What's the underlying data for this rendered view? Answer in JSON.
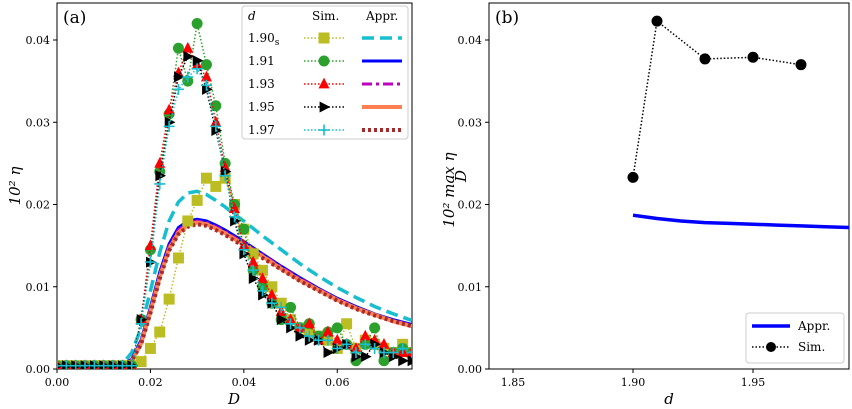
{
  "chart_data": [
    {
      "type": "line",
      "panel_label": "(a)",
      "xlabel": "D",
      "ylabel": "10² η",
      "xlim": [
        0.0,
        0.076
      ],
      "ylim": [
        0.0,
        0.0445
      ],
      "xticks": [
        0.0,
        0.02,
        0.04,
        0.06
      ],
      "xtick_labels": [
        "0.00",
        "0.02",
        "0.04",
        "0.06"
      ],
      "yticks": [
        0.0,
        0.01,
        0.02,
        0.03,
        0.04
      ],
      "ytick_labels": [
        "0.00",
        "0.01",
        "0.02",
        "0.03",
        "0.04"
      ],
      "legend": {
        "header_d": "d",
        "header_sim": "Sim.",
        "header_appr": "Appr.",
        "entries": [
          {
            "d": "1.90",
            "d_sub": "s"
          },
          {
            "d": "1.91",
            "d_sub": ""
          },
          {
            "d": "1.93",
            "d_sub": ""
          },
          {
            "d": "1.95",
            "d_sub": ""
          },
          {
            "d": "1.97",
            "d_sub": ""
          }
        ]
      },
      "sim_x": [
        0.0,
        0.002,
        0.004,
        0.006,
        0.008,
        0.01,
        0.012,
        0.014,
        0.016,
        0.018,
        0.02,
        0.022,
        0.024,
        0.026,
        0.028,
        0.03,
        0.032,
        0.034,
        0.036,
        0.038,
        0.04,
        0.042,
        0.044,
        0.046,
        0.048,
        0.05,
        0.052,
        0.054,
        0.056,
        0.058,
        0.06,
        0.062,
        0.064,
        0.066,
        0.068,
        0.07,
        0.072,
        0.074,
        0.076
      ],
      "series": [
        {
          "name": "1.90s Sim.",
          "kind": "sim",
          "color": "#bcbd22",
          "marker": "square",
          "values": [
            0.0004,
            0.0004,
            0.0004,
            0.0004,
            0.0004,
            0.0004,
            0.0004,
            0.0004,
            0.0004,
            0.0009,
            0.0025,
            0.0045,
            0.0085,
            0.0135,
            0.018,
            0.0205,
            0.0232,
            0.0222,
            0.0232,
            0.02,
            0.017,
            0.014,
            0.012,
            0.01,
            0.008,
            0.006,
            0.005,
            0.0045,
            0.004,
            0.0035,
            0.0025,
            0.0055,
            0.0025,
            0.0035,
            0.003,
            0.0025,
            0.002,
            0.003,
            0.002
          ]
        },
        {
          "name": "1.91 Sim.",
          "kind": "sim",
          "color": "#2ca02c",
          "marker": "circle",
          "values": [
            0.0004,
            0.0004,
            0.0004,
            0.0004,
            0.0004,
            0.0004,
            0.0004,
            0.0004,
            0.0004,
            0.006,
            0.0145,
            0.024,
            0.031,
            0.039,
            0.035,
            0.042,
            0.037,
            0.032,
            0.025,
            0.02,
            0.017,
            0.012,
            0.01,
            0.008,
            0.006,
            0.0075,
            0.005,
            0.0055,
            0.004,
            0.0045,
            0.005,
            0.003,
            0.001,
            0.003,
            0.005,
            0.001,
            0.002,
            0.0025,
            0.002
          ]
        },
        {
          "name": "1.93 Sim.",
          "kind": "sim",
          "color": "#ff0000",
          "marker": "triangle-up",
          "values": [
            0.0004,
            0.0004,
            0.0004,
            0.0004,
            0.0004,
            0.0004,
            0.0004,
            0.0004,
            0.0004,
            0.006,
            0.015,
            0.025,
            0.0315,
            0.036,
            0.039,
            0.037,
            0.0355,
            0.03,
            0.0245,
            0.0195,
            0.015,
            0.013,
            0.011,
            0.009,
            0.007,
            0.006,
            0.005,
            0.0055,
            0.0035,
            0.0045,
            0.0035,
            0.003,
            0.0025,
            0.004,
            0.0035,
            0.003,
            0.002,
            0.002,
            0.002
          ]
        },
        {
          "name": "1.95 Sim.",
          "kind": "sim",
          "color": "#000000",
          "marker": "triangle-right",
          "values": [
            0.0004,
            0.0004,
            0.0004,
            0.0004,
            0.0004,
            0.0004,
            0.0004,
            0.0004,
            0.0004,
            0.006,
            0.013,
            0.0235,
            0.03,
            0.0355,
            0.038,
            0.0375,
            0.034,
            0.029,
            0.024,
            0.018,
            0.014,
            0.011,
            0.009,
            0.008,
            0.006,
            0.005,
            0.004,
            0.0035,
            0.0035,
            0.002,
            0.0025,
            0.003,
            0.0015,
            0.0015,
            0.003,
            0.002,
            0.0015,
            0.001,
            0.001
          ]
        },
        {
          "name": "1.97 Sim.",
          "kind": "sim",
          "color": "#17becf",
          "marker": "plus",
          "values": [
            0.0004,
            0.0004,
            0.0004,
            0.0004,
            0.0004,
            0.0004,
            0.0004,
            0.0004,
            0.0004,
            0.0055,
            0.013,
            0.0225,
            0.0295,
            0.034,
            0.0355,
            0.0365,
            0.0345,
            0.0295,
            0.0235,
            0.0185,
            0.0145,
            0.012,
            0.0095,
            0.008,
            0.0075,
            0.0055,
            0.005,
            0.004,
            0.0035,
            0.0035,
            0.0025,
            0.003,
            0.002,
            0.003,
            0.0025,
            0.002,
            0.002,
            0.0025,
            0.002
          ]
        }
      ],
      "appr_x": [
        0.0,
        0.01,
        0.014,
        0.016,
        0.018,
        0.02,
        0.022,
        0.024,
        0.026,
        0.028,
        0.03,
        0.032,
        0.034,
        0.036,
        0.038,
        0.04,
        0.044,
        0.048,
        0.052,
        0.056,
        0.06,
        0.064,
        0.068,
        0.072,
        0.076
      ],
      "appr_series": [
        {
          "name": "1.90s Appr.",
          "kind": "appr",
          "color": "#17becf",
          "style": "dashed",
          "width": 3.5,
          "values": [
            0.0004,
            0.0004,
            0.0006,
            0.002,
            0.005,
            0.0095,
            0.0142,
            0.018,
            0.0203,
            0.0214,
            0.0216,
            0.0212,
            0.0205,
            0.0197,
            0.0188,
            0.018,
            0.0162,
            0.0145,
            0.0128,
            0.0113,
            0.0099,
            0.0087,
            0.0076,
            0.0067,
            0.0059
          ]
        },
        {
          "name": "1.91 Appr.",
          "kind": "appr",
          "color": "#0000ff",
          "style": "solid",
          "width": 3,
          "values": [
            0.0004,
            0.0004,
            0.0005,
            0.0012,
            0.0035,
            0.0075,
            0.0118,
            0.0152,
            0.0172,
            0.018,
            0.0182,
            0.018,
            0.0175,
            0.0169,
            0.0162,
            0.0155,
            0.014,
            0.0125,
            0.0111,
            0.0098,
            0.0086,
            0.0076,
            0.0067,
            0.006,
            0.0054
          ]
        },
        {
          "name": "1.93 Appr.",
          "kind": "appr",
          "color": "#bf00bf",
          "style": "dashdot",
          "width": 3,
          "values": [
            0.0004,
            0.0004,
            0.0005,
            0.0011,
            0.0033,
            0.0072,
            0.0115,
            0.0149,
            0.0169,
            0.0177,
            0.018,
            0.0178,
            0.0173,
            0.0167,
            0.016,
            0.0153,
            0.0139,
            0.0124,
            0.011,
            0.0097,
            0.0085,
            0.0075,
            0.0066,
            0.0059,
            0.0053
          ]
        },
        {
          "name": "1.95 Appr.",
          "kind": "appr",
          "color": "#ff7f50",
          "style": "solid",
          "width": 4,
          "values": [
            0.0004,
            0.0004,
            0.0005,
            0.001,
            0.0031,
            0.007,
            0.0112,
            0.0146,
            0.0166,
            0.0175,
            0.0178,
            0.0176,
            0.0171,
            0.0165,
            0.0158,
            0.0151,
            0.0137,
            0.0122,
            0.0108,
            0.0096,
            0.0084,
            0.0074,
            0.0066,
            0.0058,
            0.0052
          ]
        },
        {
          "name": "1.97 Appr.",
          "kind": "appr",
          "color": "#a52a2a",
          "style": "dotted",
          "width": 4,
          "values": [
            0.0004,
            0.0004,
            0.0005,
            0.001,
            0.003,
            0.0068,
            0.011,
            0.0144,
            0.0164,
            0.0173,
            0.0176,
            0.0174,
            0.0169,
            0.0163,
            0.0156,
            0.0149,
            0.0135,
            0.0121,
            0.0107,
            0.0095,
            0.0083,
            0.0073,
            0.0065,
            0.0058,
            0.0052
          ]
        }
      ]
    },
    {
      "type": "line",
      "panel_label": "(b)",
      "xlabel": "d",
      "ylabel": "10² max η",
      "ylabel_sub": "D",
      "xlim": [
        1.84,
        1.99
      ],
      "ylim": [
        0.0,
        0.0445
      ],
      "xticks": [
        1.85,
        1.9,
        1.95
      ],
      "xtick_labels": [
        "1.85",
        "1.90",
        "1.95"
      ],
      "yticks": [
        0.0,
        0.01,
        0.02,
        0.03,
        0.04
      ],
      "ytick_labels": [
        "0.00",
        "0.01",
        "0.02",
        "0.03",
        "0.04"
      ],
      "legend": {
        "appr_label": "Appr.",
        "sim_label": "Sim."
      },
      "series": [
        {
          "name": "Sim.",
          "color": "#000000",
          "marker": "circle",
          "style": "dotted",
          "x": [
            1.9,
            1.91,
            1.93,
            1.95,
            1.97
          ],
          "values": [
            0.0233,
            0.0423,
            0.0377,
            0.0379,
            0.037
          ]
        },
        {
          "name": "Appr.",
          "color": "#0000ff",
          "style": "solid",
          "x": [
            1.9,
            1.91,
            1.92,
            1.93,
            1.94,
            1.95,
            1.96,
            1.97,
            1.98,
            1.99
          ],
          "values": [
            0.0187,
            0.0183,
            0.018,
            0.0178,
            0.0177,
            0.0176,
            0.0175,
            0.0174,
            0.0173,
            0.0172
          ]
        }
      ]
    }
  ]
}
